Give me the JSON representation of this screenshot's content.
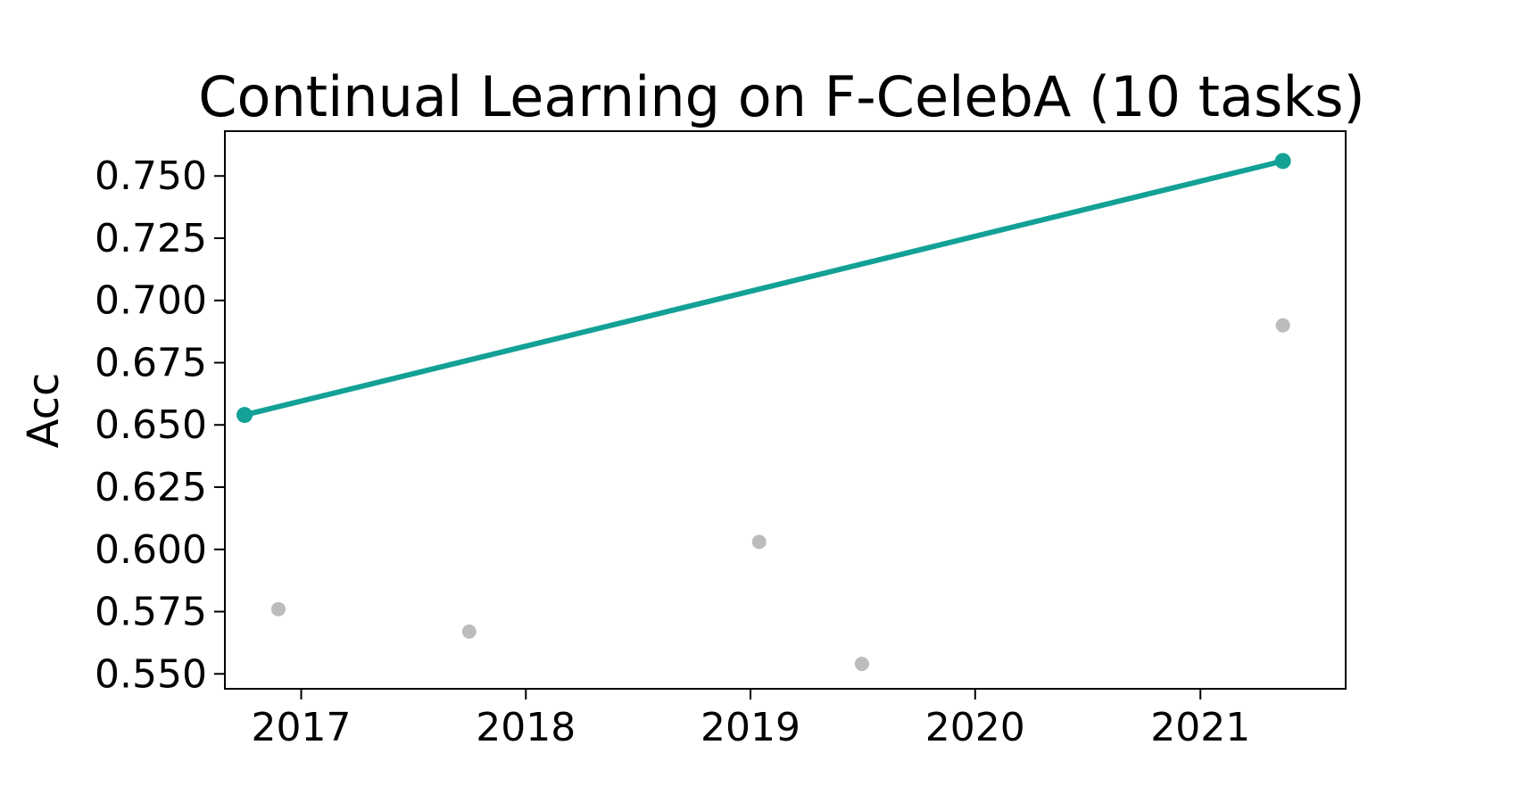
{
  "chart_data": {
    "type": "scatter",
    "title": "Continual Learning on F-CelebA (10 tasks)",
    "xlabel": "",
    "ylabel": "Acc",
    "x_ticks": [
      "2017",
      "2018",
      "2019",
      "2020",
      "2021"
    ],
    "y_ticks": [
      "0.550",
      "0.575",
      "0.600",
      "0.625",
      "0.650",
      "0.675",
      "0.700",
      "0.725",
      "0.750"
    ],
    "xlim": [
      "2016-08-30",
      "2021-08-25"
    ],
    "ylim": [
      0.544,
      0.768
    ],
    "grid": false,
    "legend": "none",
    "series": [
      {
        "role": "frontier",
        "color": "#13a196",
        "style": "line-with-markers",
        "points": [
          {
            "x": "2016-10-01",
            "y": 0.654
          },
          {
            "x": "2021-05-15",
            "y": 0.756
          }
        ]
      },
      {
        "role": "other",
        "color": "#bcbcbc",
        "style": "markers",
        "points": [
          {
            "x": "2016-11-25",
            "y": 0.576
          },
          {
            "x": "2017-10-01",
            "y": 0.567
          },
          {
            "x": "2019-01-15",
            "y": 0.603
          },
          {
            "x": "2019-07-01",
            "y": 0.554
          },
          {
            "x": "2021-05-15",
            "y": 0.69
          }
        ]
      }
    ]
  }
}
